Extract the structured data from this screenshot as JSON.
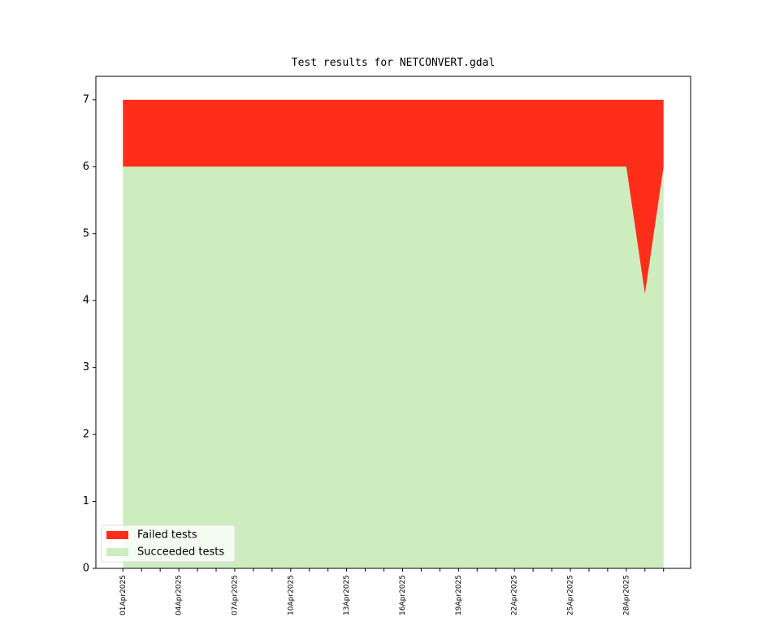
{
  "chart_data": {
    "type": "stacked_area",
    "title": "Test results for NETCONVERT.gdal",
    "categories": [
      "01Apr2025",
      null,
      null,
      "04Apr2025",
      null,
      null,
      "07Apr2025",
      null,
      null,
      "10Apr2025",
      null,
      null,
      "13Apr2025",
      null,
      null,
      "16Apr2025",
      null,
      null,
      "19Apr2025",
      null,
      null,
      "22Apr2025",
      null,
      null,
      "25Apr2025",
      null,
      null,
      "28Apr2025",
      null,
      null
    ],
    "series": [
      {
        "name": "Failed tests",
        "color": "#ff2e1a",
        "values": [
          1,
          1,
          1,
          1,
          1,
          1,
          1,
          1,
          1,
          1,
          1,
          1,
          1,
          1,
          1,
          1,
          1,
          1,
          1,
          1,
          1,
          1,
          1,
          1,
          1,
          1,
          1,
          1,
          2.9,
          1
        ]
      },
      {
        "name": "Succeeded tests",
        "color": "#ceedbf",
        "values": [
          6,
          6,
          6,
          6,
          6,
          6,
          6,
          6,
          6,
          6,
          6,
          6,
          6,
          6,
          6,
          6,
          6,
          6,
          6,
          6,
          6,
          6,
          6,
          6,
          6,
          6,
          6,
          6,
          4.1,
          6
        ]
      }
    ],
    "ylim": [
      0,
      7.35
    ],
    "yticks": [
      0,
      1,
      2,
      3,
      4,
      5,
      6,
      7
    ],
    "legend": "lower left"
  }
}
